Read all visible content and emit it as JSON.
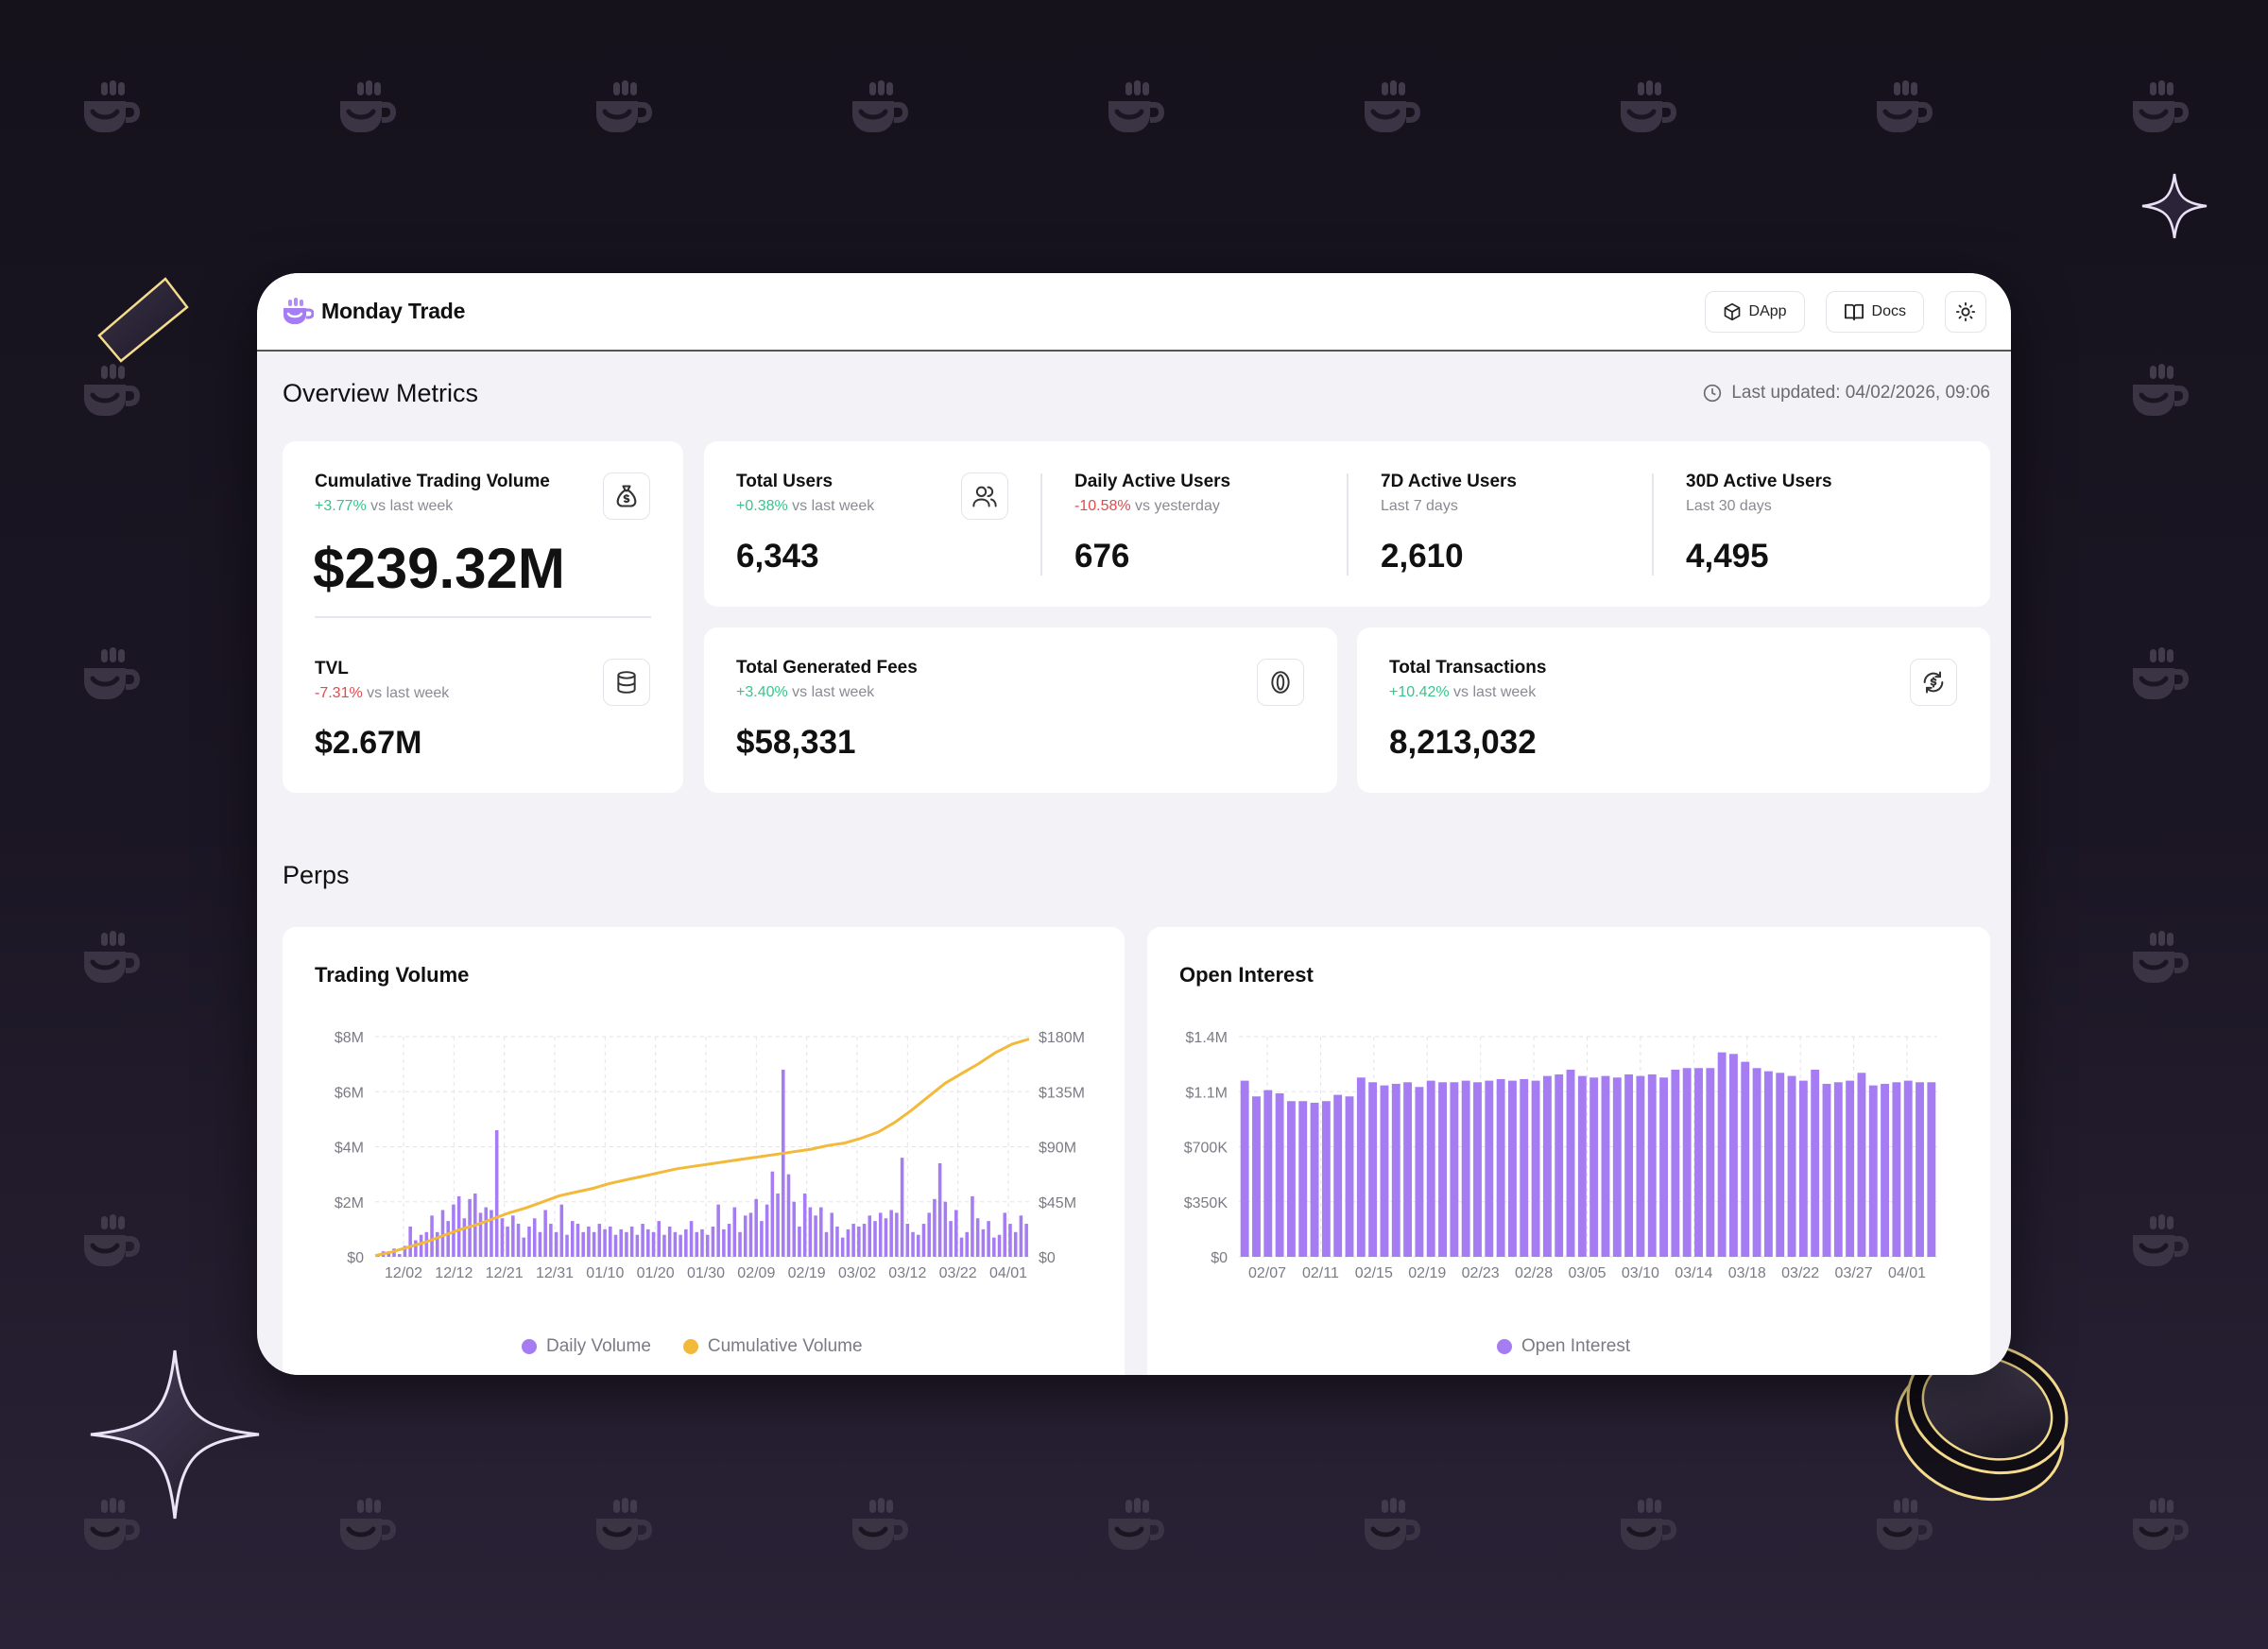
{
  "app": {
    "name": "Monday Trade"
  },
  "header": {
    "dapp_label": "DApp",
    "docs_label": "Docs",
    "theme_icon": "sun-icon"
  },
  "overview": {
    "title": "Overview Metrics",
    "last_updated": "Last updated: 04/02/2026, 09:06",
    "cumulative_volume": {
      "label": "Cumulative Trading Volume",
      "change": "+3.77%",
      "change_suffix": " vs last week",
      "value": "$239.32M",
      "icon": "money-bag-icon"
    },
    "tvl": {
      "label": "TVL",
      "change": "-7.31%",
      "change_suffix": " vs last week",
      "value": "$2.67M",
      "icon": "database-icon"
    },
    "total_users": {
      "label": "Total Users",
      "change": "+0.38%",
      "change_suffix": " vs last week",
      "value": "6,343",
      "icon": "users-icon"
    },
    "daily_active": {
      "label": "Daily Active Users",
      "change": "-10.58%",
      "change_suffix": " vs yesterday",
      "value": "676"
    },
    "active_7d": {
      "label": "7D Active Users",
      "sub": "Last 7 days",
      "value": "2,610"
    },
    "active_30d": {
      "label": "30D Active Users",
      "sub": "Last 30 days",
      "value": "4,495"
    },
    "fees": {
      "label": "Total Generated Fees",
      "change": "+3.40%",
      "change_suffix": " vs last week",
      "value": "$58,331",
      "icon": "coin-icon"
    },
    "transactions": {
      "label": "Total Transactions",
      "change": "+10.42%",
      "change_suffix": " vs last week",
      "value": "8,213,032",
      "icon": "exchange-icon"
    }
  },
  "perps": {
    "title": "Perps"
  },
  "colors": {
    "accent": "#a57cf2",
    "cumulative": "#f3b93a",
    "positive": "#37c58b",
    "negative": "#e5484d"
  },
  "chart_data": [
    {
      "type": "bar+line",
      "title": "Trading Volume",
      "x_tick_labels": [
        "12/02",
        "12/12",
        "12/21",
        "12/31",
        "01/10",
        "01/20",
        "01/30",
        "02/09",
        "02/19",
        "03/02",
        "03/12",
        "03/22",
        "04/01"
      ],
      "y_left_ticks": [
        "$8M",
        "$6M",
        "$4M",
        "$2M",
        "$0"
      ],
      "y_right_ticks": [
        "$180M",
        "$135M",
        "$90M",
        "$45M",
        "$0"
      ],
      "ylim_left": [
        0,
        8
      ],
      "ylim_right": [
        0,
        180
      ],
      "series": [
        {
          "name": "Daily Volume",
          "axis": "left",
          "unit": "$M",
          "values": [
            0.1,
            0.2,
            0.2,
            0.3,
            0.1,
            0.4,
            1.1,
            0.6,
            0.8,
            0.9,
            1.5,
            0.9,
            1.7,
            1.3,
            1.9,
            2.2,
            1.4,
            2.1,
            2.3,
            1.6,
            1.8,
            1.7,
            4.6,
            1.4,
            1.1,
            1.5,
            1.2,
            0.7,
            1.1,
            1.4,
            0.9,
            1.7,
            1.2,
            0.9,
            1.9,
            0.8,
            1.3,
            1.2,
            0.9,
            1.1,
            0.9,
            1.2,
            1.0,
            1.1,
            0.8,
            1.0,
            0.9,
            1.1,
            0.8,
            1.2,
            1.0,
            0.9,
            1.3,
            0.8,
            1.1,
            0.9,
            0.8,
            1.0,
            1.3,
            0.9,
            1.0,
            0.8,
            1.1,
            1.9,
            1.0,
            1.2,
            1.8,
            0.9,
            1.5,
            1.6,
            2.1,
            1.3,
            1.9,
            3.1,
            2.3,
            6.8,
            3.0,
            2.0,
            1.1,
            2.3,
            1.8,
            1.5,
            1.8,
            0.9,
            1.6,
            1.1,
            0.7,
            1.0,
            1.2,
            1.1,
            1.2,
            1.5,
            1.3,
            1.6,
            1.4,
            1.7,
            1.6,
            3.6,
            1.2,
            0.9,
            0.8,
            1.2,
            1.6,
            2.1,
            3.4,
            2.0,
            1.3,
            1.7,
            0.7,
            0.9,
            2.2,
            1.4,
            1.0,
            1.3,
            0.7,
            0.8,
            1.6,
            1.2,
            0.9,
            1.5,
            1.2
          ]
        },
        {
          "name": "Cumulative Volume",
          "axis": "right",
          "unit": "$M",
          "values": [
            1,
            4,
            8,
            12,
            17,
            22,
            26,
            31,
            36,
            40,
            45,
            50,
            53,
            56,
            60,
            63,
            66,
            69,
            72,
            74,
            76,
            78,
            80,
            82,
            84,
            86,
            88,
            91,
            93,
            97,
            102,
            110,
            120,
            131,
            142,
            150,
            158,
            167,
            174,
            178
          ]
        }
      ]
    },
    {
      "type": "bar",
      "title": "Open Interest",
      "x_tick_labels": [
        "02/07",
        "02/11",
        "02/15",
        "02/19",
        "02/23",
        "02/28",
        "03/05",
        "03/10",
        "03/14",
        "03/18",
        "03/22",
        "03/27",
        "04/01"
      ],
      "y_ticks": [
        "$1.4M",
        "$1.1M",
        "$700K",
        "$350K",
        "$0"
      ],
      "ylim": [
        0,
        1400000
      ],
      "series": [
        {
          "name": "Open Interest",
          "values": [
            1120000,
            1020000,
            1060000,
            1040000,
            990000,
            990000,
            980000,
            990000,
            1030000,
            1020000,
            1140000,
            1110000,
            1090000,
            1100000,
            1110000,
            1080000,
            1120000,
            1110000,
            1110000,
            1120000,
            1110000,
            1120000,
            1130000,
            1120000,
            1130000,
            1120000,
            1150000,
            1160000,
            1190000,
            1150000,
            1140000,
            1150000,
            1140000,
            1160000,
            1150000,
            1160000,
            1140000,
            1190000,
            1200000,
            1200000,
            1200000,
            1300000,
            1290000,
            1240000,
            1200000,
            1180000,
            1170000,
            1150000,
            1120000,
            1190000,
            1100000,
            1110000,
            1120000,
            1170000,
            1090000,
            1100000,
            1110000,
            1120000,
            1110000,
            1110000
          ]
        }
      ]
    }
  ]
}
